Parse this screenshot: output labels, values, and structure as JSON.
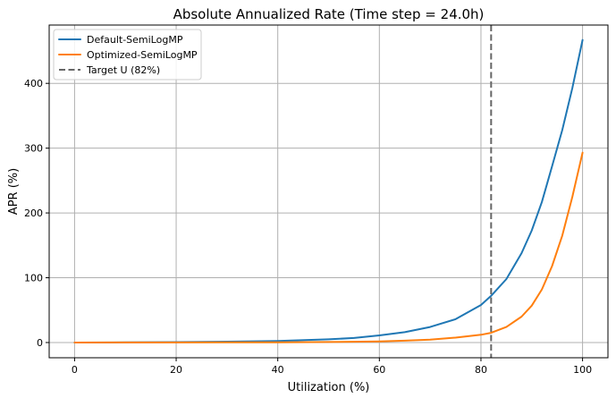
{
  "chart_data": {
    "type": "line",
    "title": "Absolute Annualized Rate (Time step = 24.0h)",
    "xlabel": "Utilization (%)",
    "ylabel": "APR (%)",
    "xlim": [
      -5,
      105
    ],
    "ylim": [
      -23.5,
      490
    ],
    "xticks": [
      0,
      20,
      40,
      60,
      80,
      100
    ],
    "yticks": [
      0,
      100,
      200,
      300,
      400
    ],
    "grid": true,
    "legend_position": "top-left",
    "series": [
      {
        "name": "Default-SemiLogMP",
        "color": "#1f77b4",
        "x": [
          0,
          10,
          20,
          30,
          40,
          50,
          55,
          60,
          65,
          70,
          75,
          80,
          82,
          85,
          88,
          90,
          92,
          94,
          96,
          98,
          100
        ],
        "y": [
          0,
          0.3,
          0.7,
          1.3,
          2.5,
          5,
          7,
          11,
          16,
          24,
          36,
          58,
          72,
          98,
          138,
          173,
          217,
          272,
          328,
          393,
          467
        ]
      },
      {
        "name": "Optimized-SemiLogMP",
        "color": "#ff7f0e",
        "x": [
          0,
          10,
          20,
          30,
          40,
          50,
          60,
          65,
          70,
          75,
          80,
          82,
          85,
          88,
          90,
          92,
          94,
          96,
          98,
          100
        ],
        "y": [
          0,
          0.05,
          0.1,
          0.2,
          0.4,
          0.8,
          1.8,
          2.8,
          4.5,
          7.5,
          12,
          15,
          24,
          40,
          57,
          82,
          118,
          165,
          225,
          293
        ]
      }
    ],
    "target": {
      "name": "Target U (82%)",
      "x": 82,
      "color": "#666666"
    }
  }
}
